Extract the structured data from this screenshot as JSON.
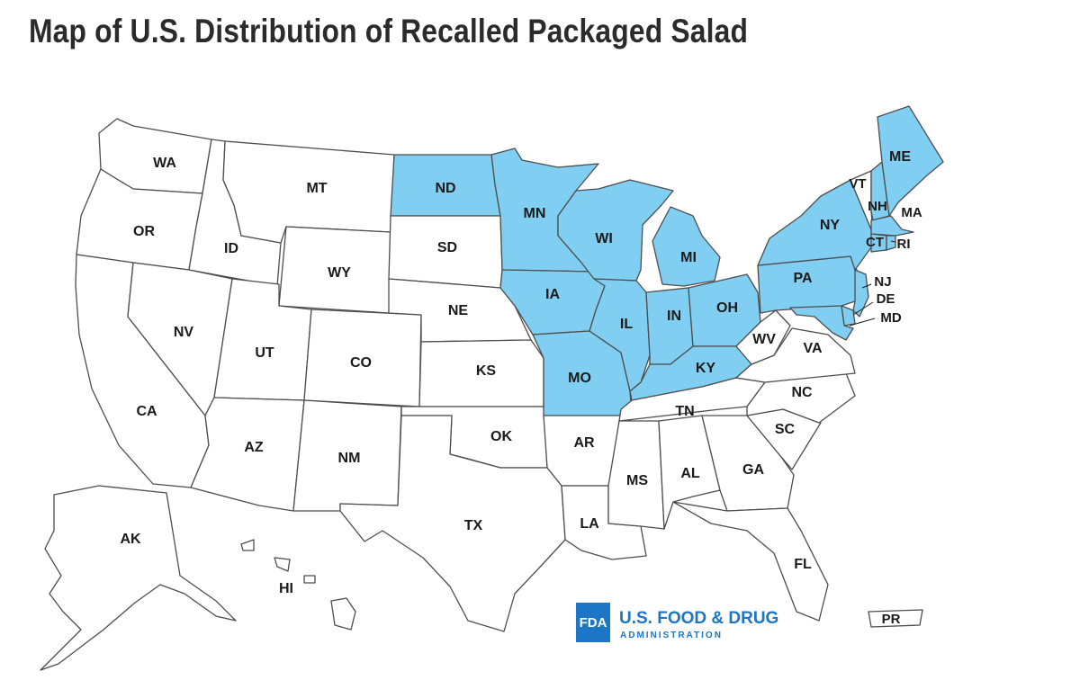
{
  "title": "Map of U.S. Distribution of Recalled Packaged Salad",
  "colors": {
    "affected": "#80cff2",
    "unaffected": "#ffffff",
    "border": "#4d4d4d",
    "brand": "#1c76c5"
  },
  "affected_states": [
    "ND",
    "MN",
    "WI",
    "IA",
    "IL",
    "MI",
    "IN",
    "OH",
    "MO",
    "KY",
    "PA",
    "NY",
    "ME",
    "NH",
    "MA",
    "CT",
    "RI",
    "NJ",
    "DE",
    "MD"
  ],
  "labels": {
    "WA": "WA",
    "OR": "OR",
    "CA": "CA",
    "ID": "ID",
    "NV": "NV",
    "MT": "MT",
    "WY": "WY",
    "UT": "UT",
    "AZ": "AZ",
    "CO": "CO",
    "NM": "NM",
    "ND": "ND",
    "SD": "SD",
    "NE": "NE",
    "KS": "KS",
    "OK": "OK",
    "TX": "TX",
    "MN": "MN",
    "IA": "IA",
    "MO": "MO",
    "AR": "AR",
    "LA": "LA",
    "WI": "WI",
    "IL": "IL",
    "MI": "MI",
    "IN": "IN",
    "OH": "OH",
    "KY": "KY",
    "TN": "TN",
    "MS": "MS",
    "AL": "AL",
    "GA": "GA",
    "FL": "FL",
    "SC": "SC",
    "NC": "NC",
    "VA": "VA",
    "WV": "WV",
    "PA": "PA",
    "NY": "NY",
    "VT": "VT",
    "NH": "NH",
    "ME": "ME",
    "MA": "MA",
    "CT": "CT",
    "RI": "RI",
    "NJ": "NJ",
    "DE": "DE",
    "MD": "MD",
    "AK": "AK",
    "HI": "HI",
    "PR": "PR"
  },
  "logo": {
    "letters": "FDA",
    "name": "U.S. FOOD & DRUG",
    "subtitle": "ADMINISTRATION"
  }
}
